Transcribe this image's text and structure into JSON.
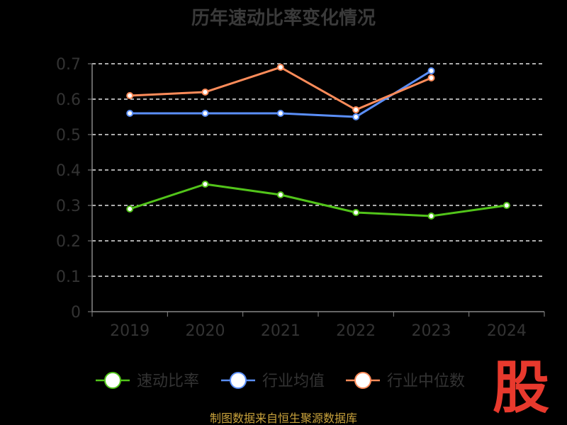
{
  "chart_data": {
    "type": "line",
    "title": "历年速动比率变化情况",
    "categories": [
      "2019",
      "2020",
      "2021",
      "2022",
      "2023",
      "2024"
    ],
    "ylim": [
      0,
      0.7
    ],
    "yticks": [
      "0",
      "0.1",
      "0.2",
      "0.3",
      "0.4",
      "0.5",
      "0.6",
      "0.7"
    ],
    "grid": true,
    "legend_position": "bottom",
    "series": [
      {
        "name": "速动比率",
        "color": "#52c41a",
        "values": [
          0.29,
          0.36,
          0.33,
          0.28,
          0.27,
          0.3
        ]
      },
      {
        "name": "行业均值",
        "color": "#5b8ff9",
        "values": [
          0.56,
          0.56,
          0.56,
          0.55,
          0.68,
          null
        ]
      },
      {
        "name": "行业中位数",
        "color": "#ff8c5a",
        "values": [
          0.61,
          0.62,
          0.69,
          0.57,
          0.66,
          null
        ]
      }
    ]
  },
  "source_text": "制图数据来自恒生聚源数据库",
  "logo_text": "股"
}
